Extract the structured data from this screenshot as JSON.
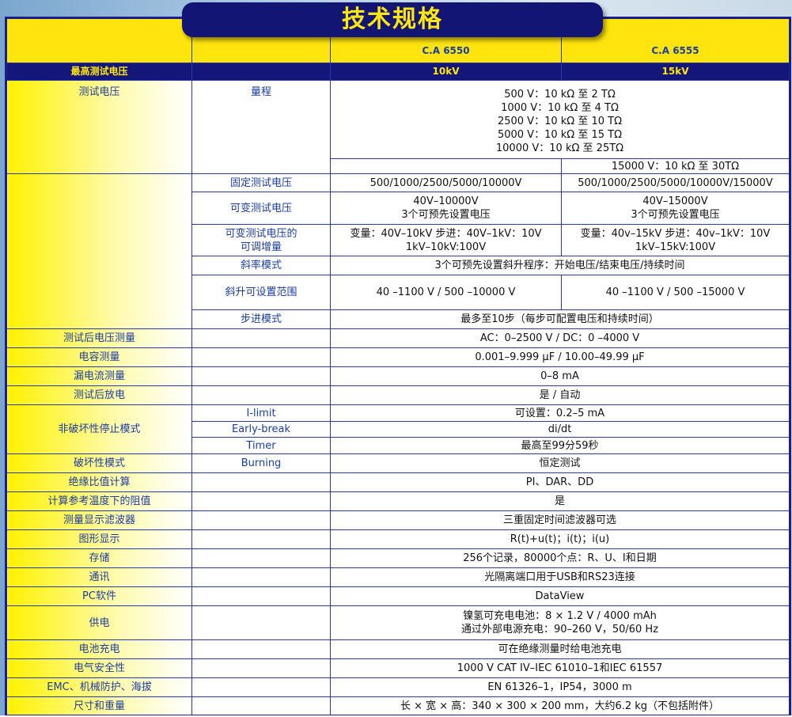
{
  "title": "技术规格",
  "header": {
    "model_a": "C.A 6550",
    "model_b": "C.A 6555"
  },
  "max_voltage": {
    "label": "最高测试电压",
    "a": "10kV",
    "b": "15kV"
  },
  "test_voltage": {
    "label": "测试电压",
    "range_label": "量程",
    "range_lines": [
      "500 V：10 kΩ 至 2 TΩ",
      "1000 V：10 kΩ 至 4 TΩ",
      "2500 V：10 kΩ 至 10 TΩ",
      "5000 V：10 kΩ 至 15 TΩ",
      "10000 V：10 kΩ 至 25TΩ"
    ],
    "range_b_extra": "15000 V：10 kΩ 至 30TΩ"
  },
  "voltage_rows": {
    "fixed": {
      "label": "固定测试电压",
      "a": "500/1000/2500/5000/10000V",
      "b": "500/1000/2500/5000/10000V/15000V"
    },
    "variable": {
      "label": "可变测试电压",
      "a1": "40V–10000V",
      "a2": "3个可预先设置电压",
      "b1": "40V–15000V",
      "b2": "3个可预先设置电压"
    },
    "increment": {
      "label1": "可变测试电压的",
      "label2": "可调增量",
      "a1": "变量：40V–10kV 步进：40V–1kV：10V",
      "a2": "1kV–10kV:100V",
      "b1": "变量：40v–15kV 步进：40v–1kV：10V",
      "b2": "1kV–15kV:100V"
    },
    "ramp": {
      "label": "斜率模式",
      "value": "3个可预先设置斜升程序：开始电压/结束电压/持续时间"
    },
    "ramp_range": {
      "label": "斜升可设置范围",
      "a": "40 –1100 V / 500 –10000 V",
      "b": "40 –1100 V / 500 –15000 V"
    },
    "step": {
      "label": "步进模式",
      "value": "最多至10步（每步可配置电压和持续时间）"
    }
  },
  "rows": [
    {
      "label": "测试后电压测量",
      "value": "AC：0–2500 V / DC：0 –4000 V"
    },
    {
      "label": "电容测量",
      "value": "0.001–9.999 μF / 10.00–49.99 μF"
    },
    {
      "label": "漏电流测量",
      "value": "0–8 mA"
    },
    {
      "label": "测试后放电",
      "value": "是 / 自动"
    }
  ],
  "nondestructive": {
    "label": "非破坏性停止模式",
    "items": [
      {
        "sub": "I-limit",
        "value": "可设置：0.2–5 mA"
      },
      {
        "sub": "Early-break",
        "value": "di/dt"
      },
      {
        "sub": "Timer",
        "value": "最高至99分59秒"
      }
    ]
  },
  "destructive": {
    "label": "破坏性模式",
    "sub": "Burning",
    "value": "恒定测试"
  },
  "rows2": [
    {
      "label": "绝缘比值计算",
      "value": "PI、DAR、DD"
    },
    {
      "label": "计算参考温度下的阻值",
      "value": "是"
    },
    {
      "label": "测量显示滤波器",
      "value": "三重固定时间滤波器可选"
    },
    {
      "label": "图形显示",
      "value": "R(t)+u(t)；i(t)；i(u)"
    },
    {
      "label": "存储",
      "value": "256个记录，80000个点：R、U、I和日期"
    },
    {
      "label": "通讯",
      "value": "光隔离端口用于USB和RS23连接"
    },
    {
      "label": "PC软件",
      "value": "DataView"
    }
  ],
  "power": {
    "label": "供电",
    "line1": "镍氢可充电电池：8 × 1.2 V / 4000 mAh",
    "line2": "通过外部电源充电：90–260 V，50/60 Hz"
  },
  "rows3": [
    {
      "label": "电池充电",
      "value": "可在绝缘测量时给电池充电"
    },
    {
      "label": "电气安全性",
      "value": "1000 V CAT IV–IEC 61010–1和IEC 61557"
    },
    {
      "label": "EMC、机械防护、海拔",
      "value": "EN 61326–1，IP54，3000 m"
    },
    {
      "label": "尺寸和重量",
      "value": "长 × 宽 × 高：340 × 300 × 200 mm，大约6.2 kg（不包括附件）"
    }
  ]
}
